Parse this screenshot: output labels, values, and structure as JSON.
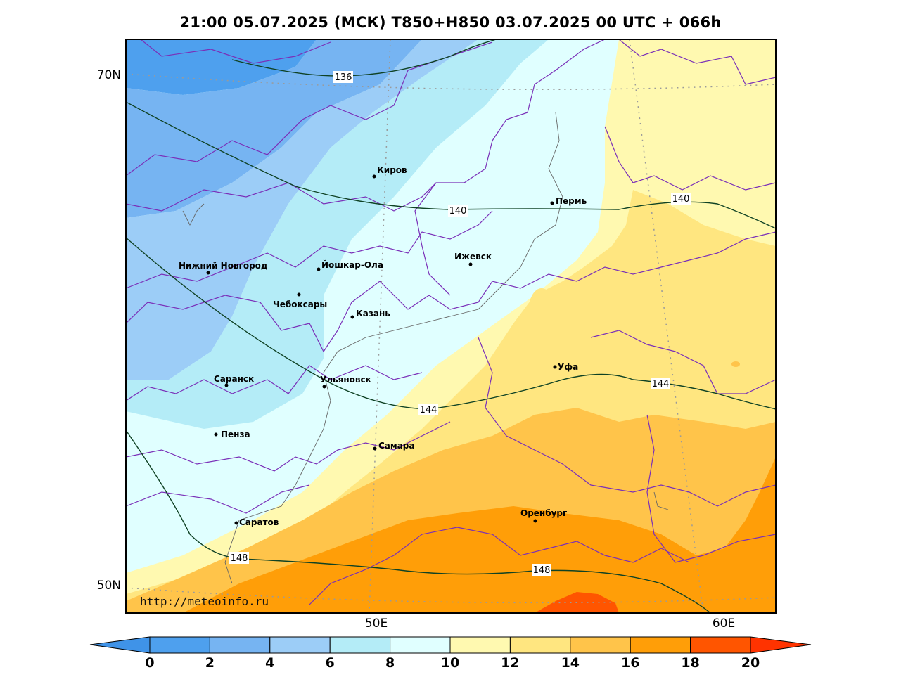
{
  "title": "21:00 05.07.2025 (МСК) T850+H850 03.07.2025 00 UTC + 066h",
  "credit": "http://meteoinfo.ru",
  "axes": {
    "lat_labels": [
      "70N",
      "50N"
    ],
    "lon_labels": [
      "50E",
      "60E"
    ]
  },
  "cities": [
    {
      "name": "Киров",
      "id": "kirov"
    },
    {
      "name": "Пермь",
      "id": "perm"
    },
    {
      "name": "Нижний Новгород",
      "id": "nizhny-novgorod"
    },
    {
      "name": "Йошкар-Ола",
      "id": "yoshkar-ola"
    },
    {
      "name": "Ижевск",
      "id": "izhevsk"
    },
    {
      "name": "Чебоксары",
      "id": "cheboksary"
    },
    {
      "name": "Казань",
      "id": "kazan"
    },
    {
      "name": "Уфа",
      "id": "ufa"
    },
    {
      "name": "Саранск",
      "id": "saransk"
    },
    {
      "name": "Ульяновск",
      "id": "ulyanovsk"
    },
    {
      "name": "Пенза",
      "id": "penza"
    },
    {
      "name": "Самара",
      "id": "samara"
    },
    {
      "name": "Оренбург",
      "id": "orenburg"
    },
    {
      "name": "Саратов",
      "id": "saratov"
    }
  ],
  "contour_labels": [
    "136",
    "140",
    "140",
    "144",
    "144",
    "148",
    "148"
  ],
  "colorbar": {
    "ticks": [
      "0",
      "2",
      "4",
      "6",
      "8",
      "10",
      "12",
      "14",
      "16",
      "18",
      "20"
    ],
    "colors": [
      "#3f93e8",
      "#4ea0ee",
      "#76b4f2",
      "#9ccdf7",
      "#b4ecf7",
      "#e0ffff",
      "#fff9b0",
      "#ffe680",
      "#ffc44a",
      "#ff9e08",
      "#ff5500",
      "#ff3300"
    ]
  }
}
